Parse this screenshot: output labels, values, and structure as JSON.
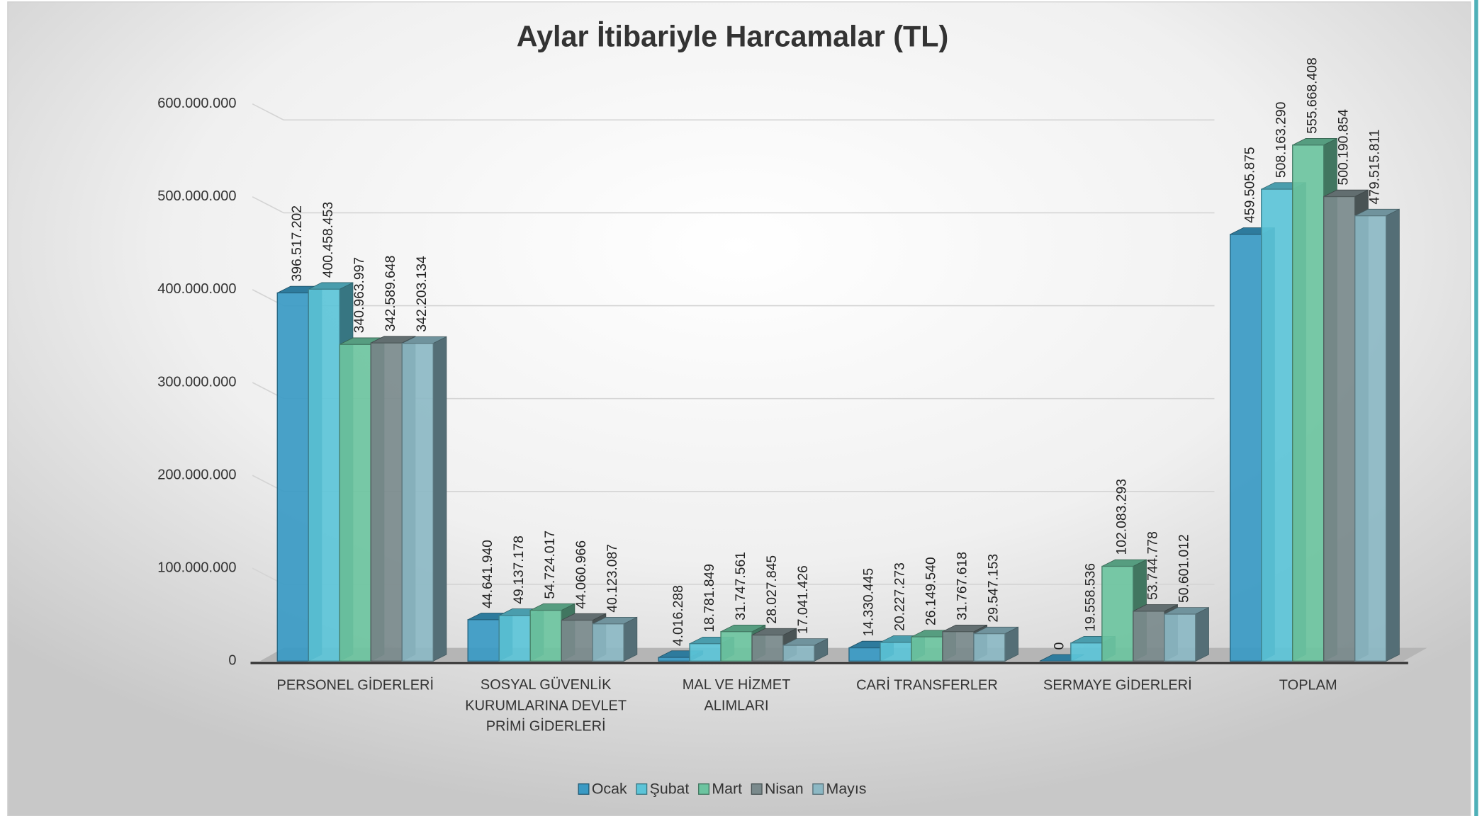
{
  "chart_data": {
    "type": "bar3d",
    "title": "Aylar İtibariyle Harcamalar (TL)",
    "categories": [
      "PERSONEL GİDERLERİ",
      "SOSYAL GÜVENLİK KURUMLARINA DEVLET PRİMİ GİDERLERİ",
      "MAL VE HİZMET ALIMLARI",
      "CARİ TRANSFERLER",
      "SERMAYE GİDERLERİ",
      "TOPLAM"
    ],
    "series": [
      {
        "name": "Ocak",
        "color": "#3a9ac4",
        "values": [
          396517202,
          44641940,
          4016288,
          14330445,
          0,
          459505875
        ],
        "value_labels": [
          "396.517.202",
          "44.641.940",
          "4.016.288",
          "14.330.445",
          "0",
          "459.505.875"
        ]
      },
      {
        "name": "Şubat",
        "color": "#5cc4d8",
        "values": [
          400458453,
          49137178,
          18781849,
          20227273,
          19558536,
          508163290
        ],
        "value_labels": [
          "400.458.453",
          "49.137.178",
          "18.781.849",
          "20.227.273",
          "19.558.536",
          "508.163.290"
        ]
      },
      {
        "name": "Mart",
        "color": "#6cc4a0",
        "values": [
          340963997,
          54724017,
          31747561,
          26149540,
          102083293,
          555668408
        ],
        "value_labels": [
          "340.963.997",
          "54.724.017",
          "31.747.561",
          "26.149.540",
          "102.083.293",
          "555.668.408"
        ]
      },
      {
        "name": "Nisan",
        "color": "#7a8a8c",
        "values": [
          342589648,
          44060966,
          28027845,
          31767618,
          53744778,
          500190854
        ],
        "value_labels": [
          "342.589.648",
          "44.060.966",
          "28.027.845",
          "31.767.618",
          "53.744.778",
          "500.190.854"
        ]
      },
      {
        "name": "Mayıs",
        "color": "#8cb8c4",
        "values": [
          342203134,
          40123087,
          17041426,
          29547153,
          50601012,
          479515811
        ],
        "value_labels": [
          "342.203.134",
          "40.123.087",
          "17.041.426",
          "29.547.153",
          "50.601.012",
          "479.515.811"
        ]
      }
    ],
    "ylim": [
      0,
      600000000
    ],
    "yticks": [
      0,
      {
        "value": 100000000,
        "label": "100.000.000"
      },
      {
        "value": 200000000,
        "label": "200.000.000"
      },
      {
        "value": 300000000,
        "label": "300.000.000"
      },
      {
        "value": 400000000,
        "label": "400.000.000"
      },
      {
        "value": 500000000,
        "label": "500.000.000"
      },
      {
        "value": 600000000,
        "label": "600.000.000"
      }
    ],
    "grid": true,
    "legend": "bottom"
  }
}
